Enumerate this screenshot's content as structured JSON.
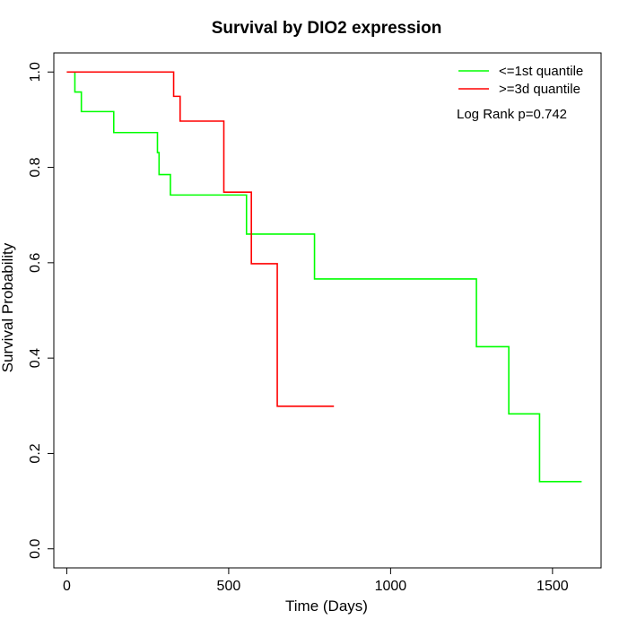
{
  "chart_data": {
    "type": "line",
    "step": true,
    "title": "Survival by DIO2 expression",
    "xlabel": "Time (Days)",
    "ylabel": "Survival Probability",
    "xlim": [
      -40,
      1650
    ],
    "ylim": [
      -0.04,
      1.04
    ],
    "xticks": [
      0,
      500,
      1000,
      1500
    ],
    "xtick_labels": [
      "0",
      "500",
      "1000",
      "1500"
    ],
    "yticks": [
      0.0,
      0.2,
      0.4,
      0.6,
      0.8,
      1.0
    ],
    "ytick_labels": [
      "0.0",
      "0.2",
      "0.4",
      "0.6",
      "0.8",
      "1.0"
    ],
    "grid": false,
    "legend_position": "top-right",
    "annotation": "Log Rank p=0.742",
    "series": [
      {
        "name": "<=1st quantile",
        "color": "#00ff00",
        "x": [
          0,
          25,
          45,
          145,
          280,
          285,
          320,
          555,
          765,
          1265,
          1365,
          1460,
          1590
        ],
        "y": [
          1.0,
          0.958,
          0.917,
          0.873,
          0.831,
          0.785,
          0.742,
          0.66,
          0.566,
          0.424,
          0.283,
          0.141,
          0.141
        ]
      },
      {
        "name": ">=3d quantile",
        "color": "#ff0000",
        "x": [
          0,
          330,
          350,
          485,
          570,
          650,
          825
        ],
        "y": [
          1.0,
          0.949,
          0.897,
          0.748,
          0.598,
          0.299,
          0.299
        ]
      }
    ]
  }
}
